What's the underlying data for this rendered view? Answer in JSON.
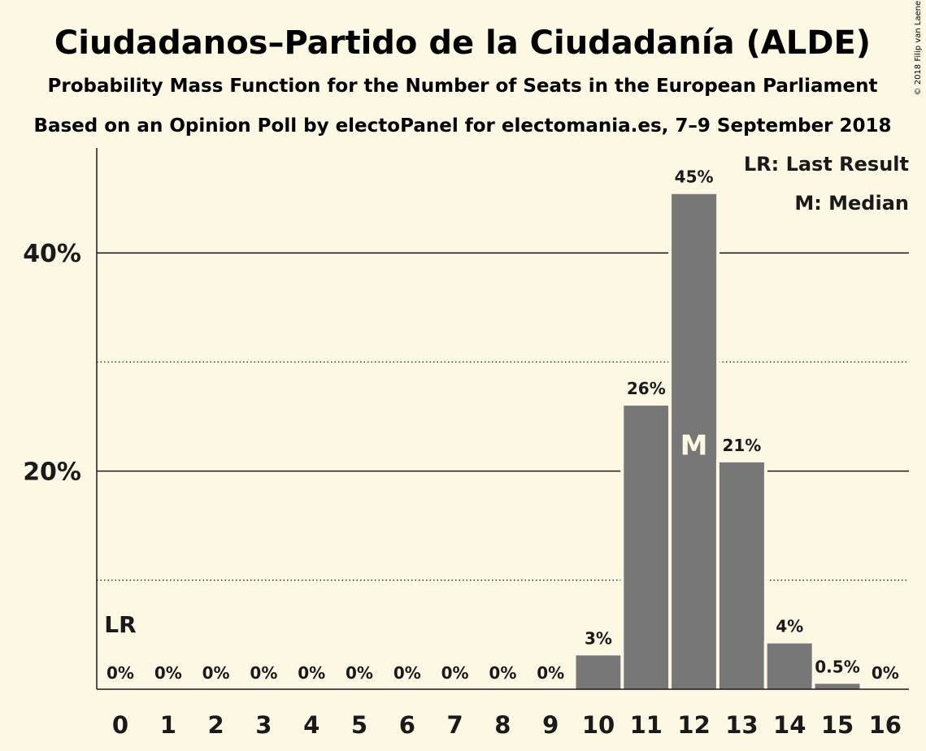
{
  "chart_data": {
    "type": "bar",
    "title": "Ciudadanos–Partido de la Ciudadanía (ALDE)",
    "subtitle": "Probability Mass Function for the Number of Seats in the European Parliament",
    "source": "Based on an Opinion Poll by electoPanel for electomania.es, 7–9 September 2018",
    "copyright": "© 2018 Filip van Laenen",
    "categories": [
      "0",
      "1",
      "2",
      "3",
      "4",
      "5",
      "6",
      "7",
      "8",
      "9",
      "10",
      "11",
      "12",
      "13",
      "14",
      "15",
      "16"
    ],
    "values": [
      0,
      0,
      0,
      0,
      0,
      0,
      0,
      0,
      0,
      0,
      3.1,
      26.0,
      45.4,
      20.8,
      4.2,
      0.5,
      0
    ],
    "value_labels": [
      "0%",
      "0%",
      "0%",
      "0%",
      "0%",
      "0%",
      "0%",
      "0%",
      "0%",
      "0%",
      "3%",
      "26%",
      "45%",
      "21%",
      "4%",
      "0.5%",
      "0%"
    ],
    "ylim": [
      0,
      50
    ],
    "y_ticks": [
      {
        "value": 20,
        "label": "20%"
      },
      {
        "value": 40,
        "label": "40%"
      }
    ],
    "y_minor_gridlines": [
      10,
      30
    ],
    "last_result_seat": 0,
    "last_result_label": "LR",
    "median_seat": 12,
    "median_label": "M",
    "legend": {
      "position": "top-right",
      "items": [
        "LR: Last Result",
        "M: Median"
      ]
    },
    "colors": {
      "bar": "#777777",
      "background": "#fdf8e4",
      "text": "#1a1a1a",
      "median_text": "#fdf8e4"
    }
  }
}
